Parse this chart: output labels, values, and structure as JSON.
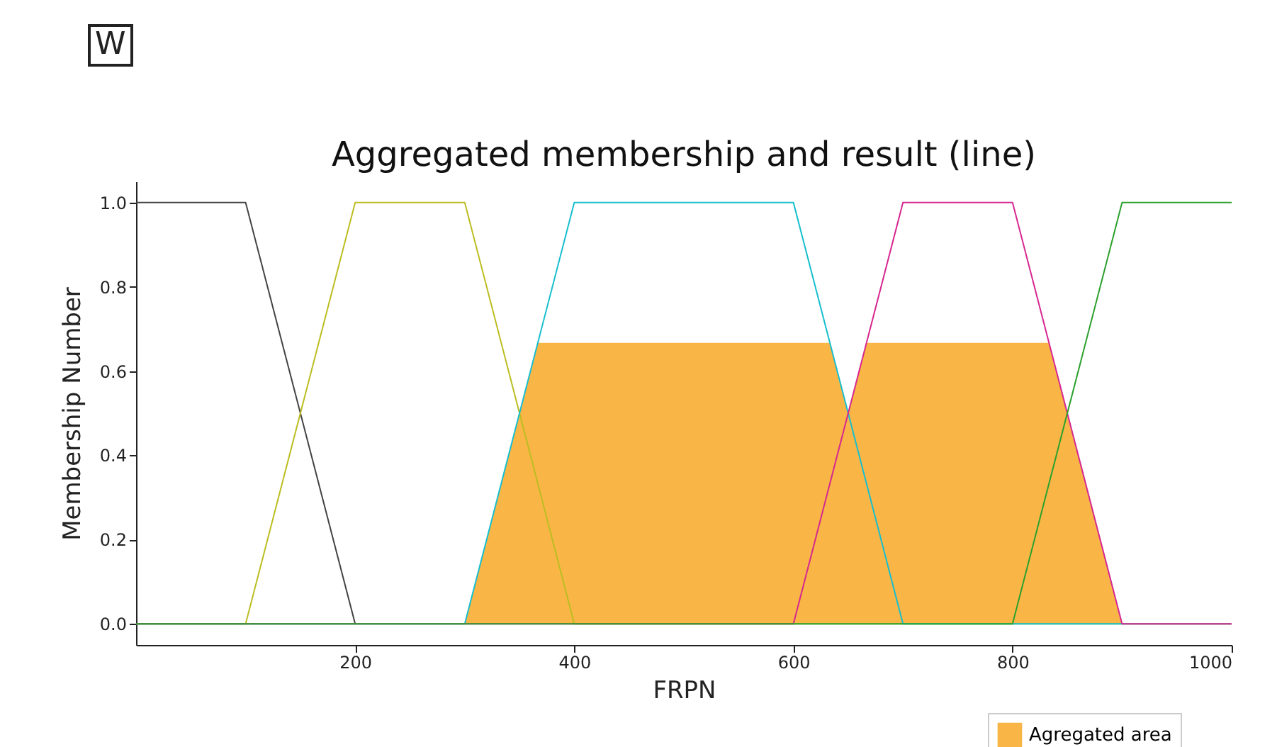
{
  "chart_data": {
    "type": "line",
    "title": "Aggregated membership and result (line)",
    "xlabel": "FRPN",
    "ylabel": "Membership Number",
    "annotations": [
      "W"
    ],
    "xlim": [
      0,
      1000
    ],
    "xticks": [
      200,
      400,
      600,
      800,
      1000
    ],
    "ylim": [
      -0.05,
      1.05
    ],
    "yticks": [
      {
        "value": 0,
        "label": "0.0"
      },
      0.2,
      0.4,
      0.6,
      0.8,
      {
        "value": 1,
        "label": "1.0"
      }
    ],
    "grid": false,
    "legend": "bottom right",
    "marker": "none",
    "line_style": "solid",
    "series": [
      {
        "type": "area",
        "name": "Agregated area",
        "color": "#f9b647",
        "x": [
          0,
          300,
          366.7,
          633.3,
          650,
          666.7,
          833.3,
          900,
          1000
        ],
        "values": [
          0,
          0,
          0.667,
          0.667,
          0.5,
          0.667,
          0.667,
          0,
          0
        ]
      },
      {
        "color": "#444444",
        "x": [
          0,
          100,
          200
        ],
        "values": [
          1,
          1,
          0
        ]
      },
      {
        "color": "#bcbd22",
        "x": [
          0,
          100,
          200,
          300,
          400,
          1000
        ],
        "values": [
          0,
          0,
          1,
          1,
          0,
          0
        ]
      },
      {
        "color": "#17becf",
        "x": [
          0,
          300,
          400,
          600,
          700,
          1000
        ],
        "values": [
          0,
          0,
          1,
          1,
          0,
          0
        ]
      },
      {
        "color": "#d6278f",
        "x": [
          0,
          600,
          700,
          800,
          900,
          1000
        ],
        "values": [
          0,
          0,
          1,
          1,
          0,
          0
        ]
      },
      {
        "color": "#2ca02c",
        "x": [
          0,
          800,
          900,
          1000
        ],
        "values": [
          0,
          0,
          1,
          1
        ]
      }
    ]
  }
}
